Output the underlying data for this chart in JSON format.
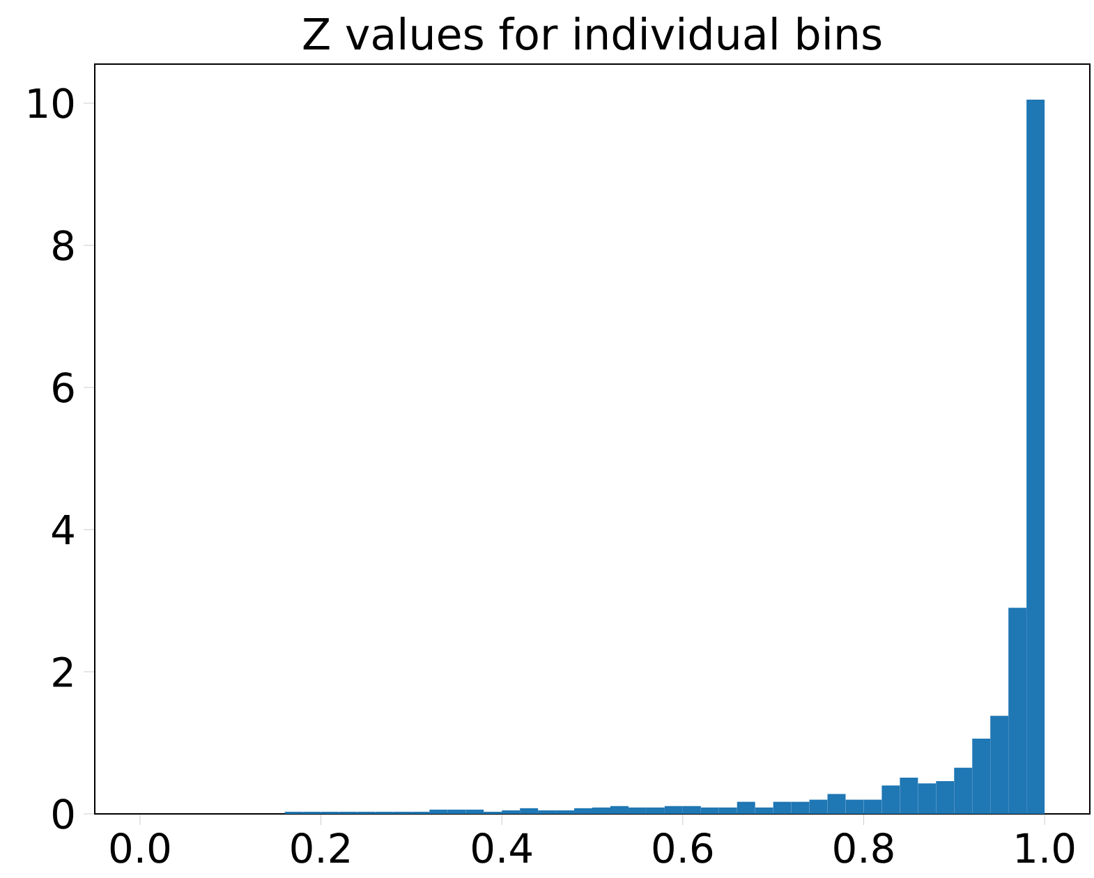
{
  "chart_data": {
    "type": "histogram",
    "title": "Z values for individual bins",
    "bins": [
      0.16,
      0.18,
      0.2,
      0.22,
      0.24,
      0.26,
      0.28,
      0.3,
      0.32,
      0.34,
      0.36,
      0.38,
      0.4,
      0.42,
      0.44,
      0.46,
      0.48,
      0.5,
      0.52,
      0.54,
      0.56,
      0.58,
      0.6,
      0.62,
      0.64,
      0.66,
      0.68,
      0.7,
      0.72,
      0.74,
      0.76,
      0.78,
      0.8,
      0.82,
      0.84,
      0.86,
      0.88,
      0.9,
      0.92,
      0.94,
      0.96,
      0.98,
      1.0
    ],
    "values": [
      0.03,
      0.03,
      0.03,
      0.03,
      0.03,
      0.03,
      0.03,
      0.03,
      0.06,
      0.06,
      0.06,
      0.03,
      0.05,
      0.08,
      0.05,
      0.05,
      0.08,
      0.09,
      0.11,
      0.09,
      0.09,
      0.11,
      0.11,
      0.09,
      0.09,
      0.17,
      0.09,
      0.17,
      0.17,
      0.2,
      0.28,
      0.2,
      0.2,
      0.4,
      0.51,
      0.43,
      0.46,
      0.65,
      1.06,
      1.38,
      2.9,
      10.05
    ],
    "color": "#1f77b4",
    "xlim": [
      -0.05,
      1.05
    ],
    "ylim": [
      0,
      10.55
    ],
    "xticks": [
      {
        "value": 0,
        "label": "0.0"
      },
      {
        "value": 0.2,
        "label": "0.2"
      },
      {
        "value": 0.4,
        "label": "0.4"
      },
      {
        "value": 0.6,
        "label": "0.6"
      },
      {
        "value": 0.8,
        "label": "0.8"
      },
      {
        "value": 1.0,
        "label": "1.0"
      }
    ],
    "yticks": [
      0,
      2,
      4,
      6,
      8,
      10
    ]
  }
}
